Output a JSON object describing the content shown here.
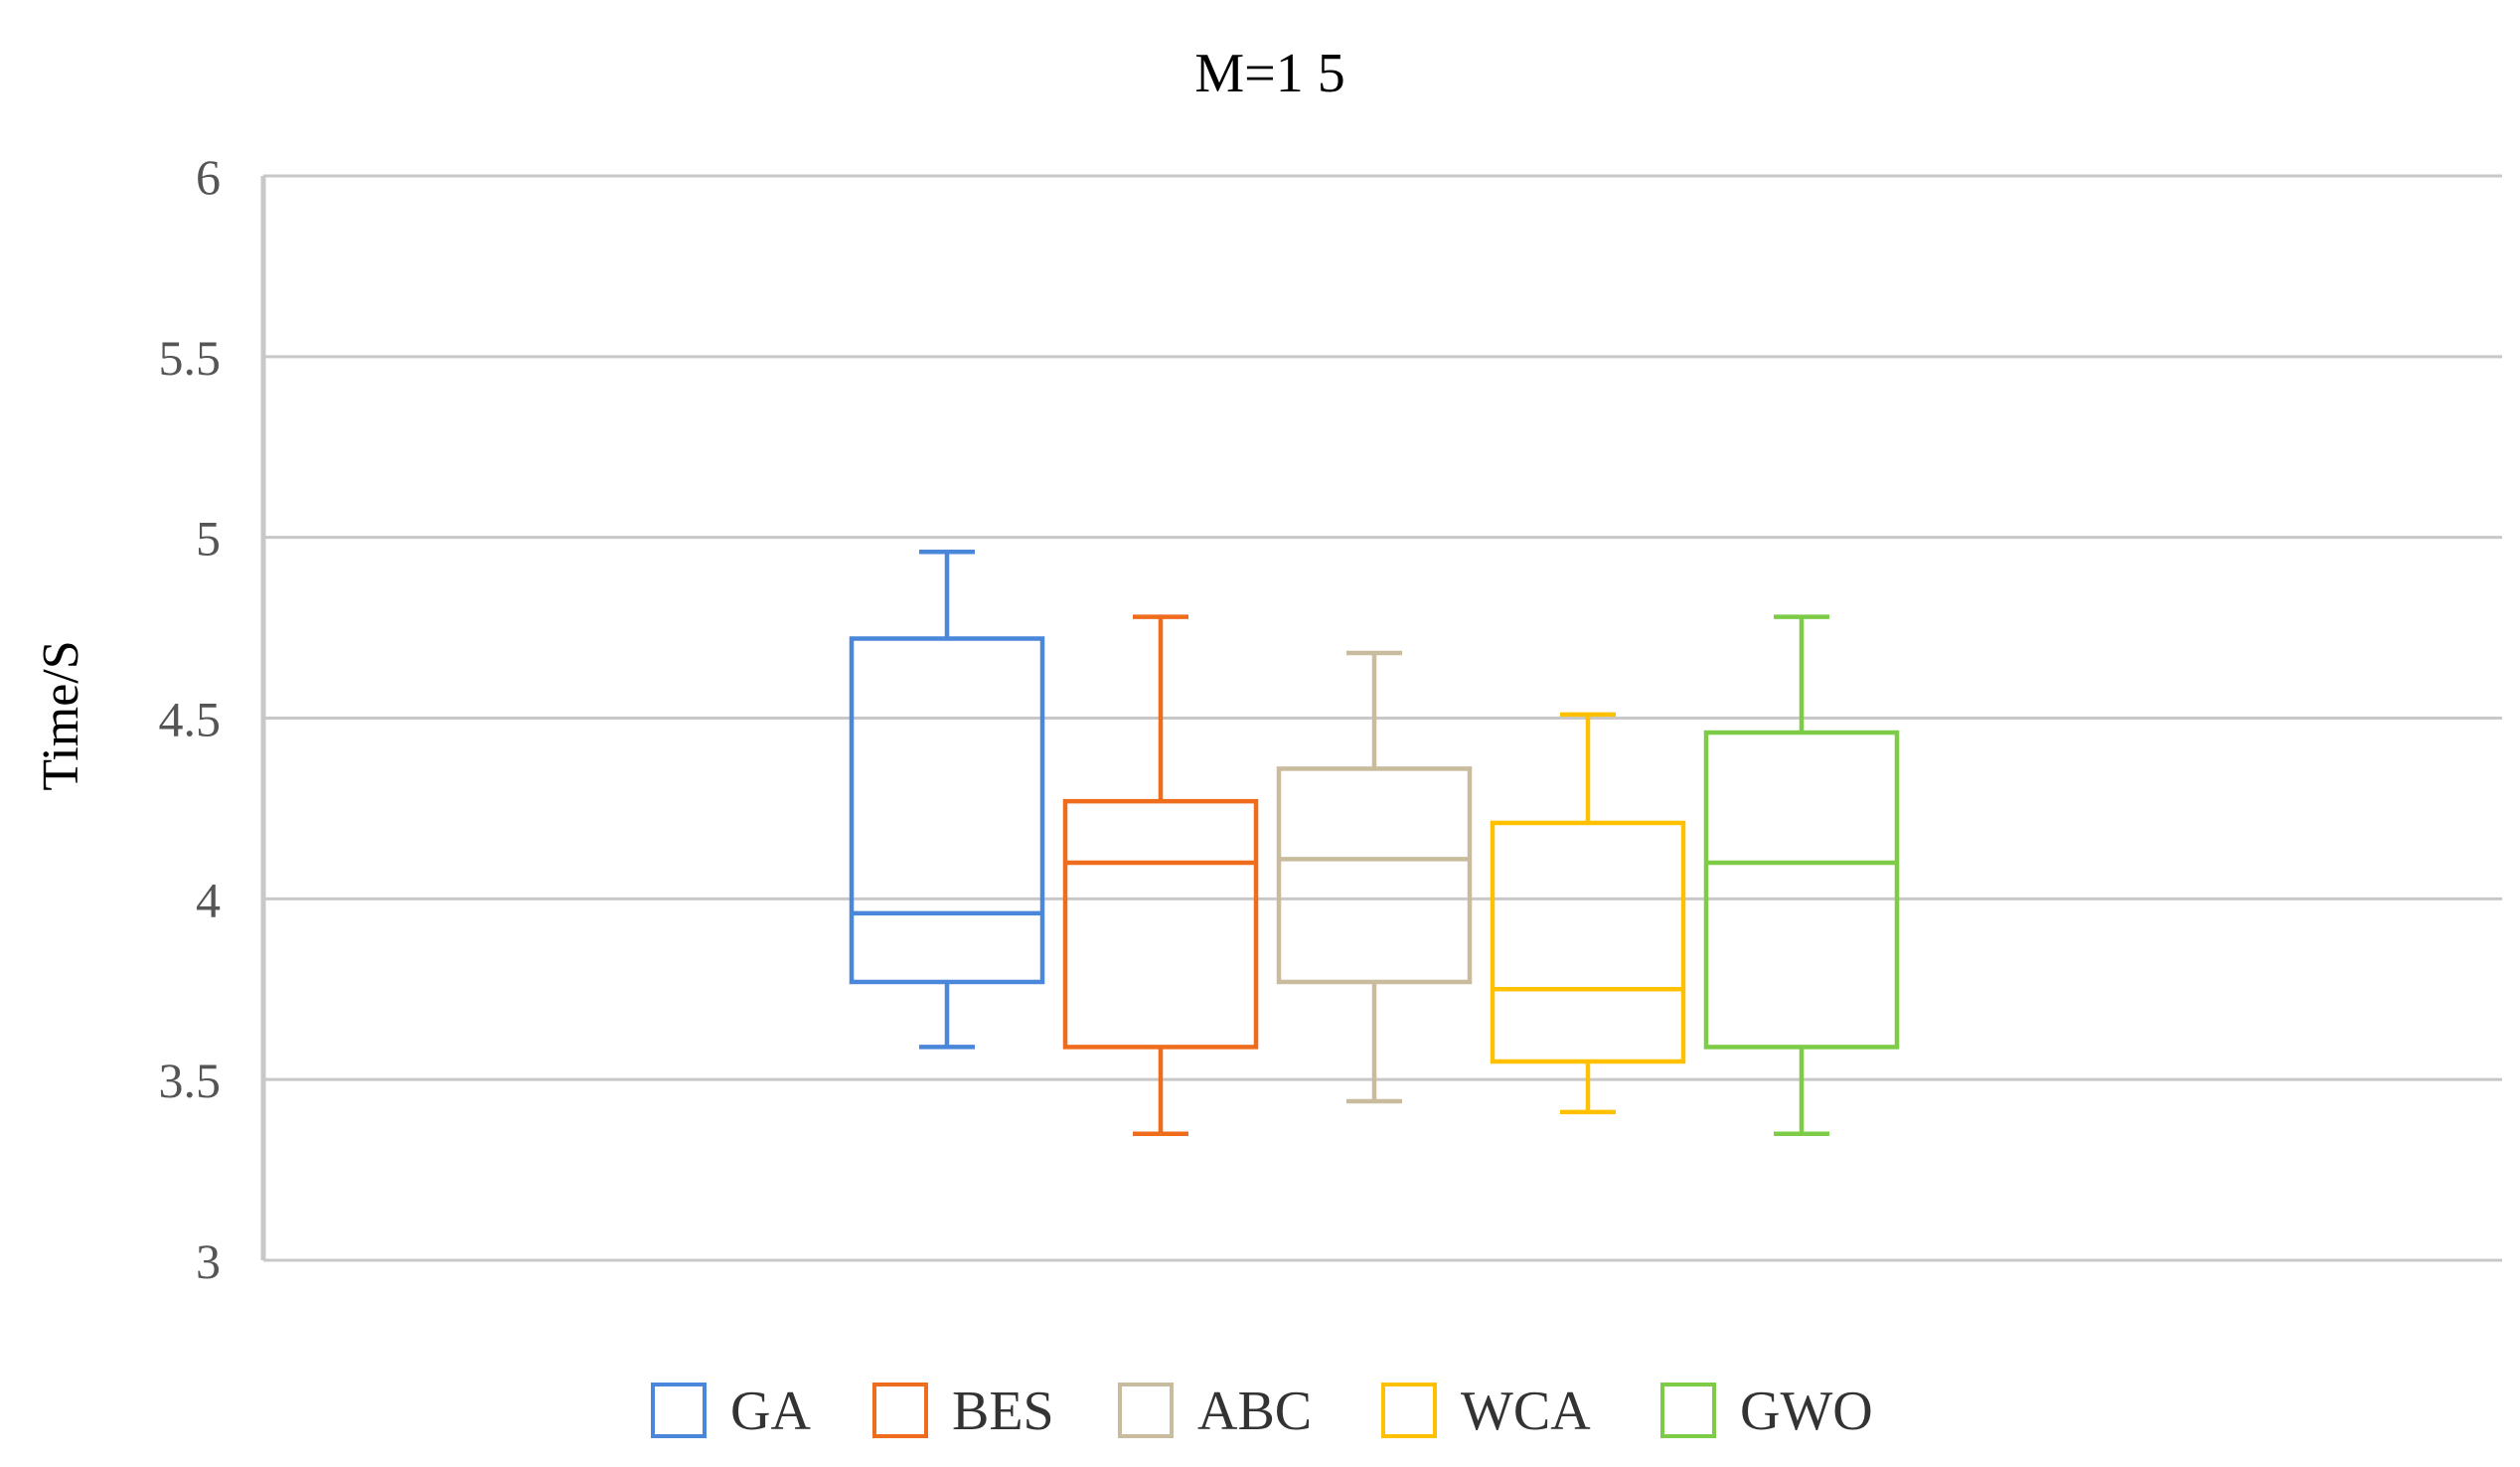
{
  "chart_data": {
    "type": "box",
    "title": "M=1 5",
    "xlabel": "",
    "ylabel": "Time/S",
    "ylim": [
      3,
      6
    ],
    "yticks": [
      3,
      3.5,
      4,
      4.5,
      5,
      5.5,
      6
    ],
    "ytick_labels": [
      "3",
      "3.5",
      "4",
      "4.5",
      "5",
      "5.5",
      "6"
    ],
    "grid": true,
    "legend_position": "bottom",
    "series": [
      {
        "name": "GA",
        "color": "#4a86d9",
        "min": 3.59,
        "q1": 3.77,
        "median": 3.96,
        "q3": 4.72,
        "max": 4.96
      },
      {
        "name": "BES",
        "color": "#ee6c1b",
        "min": 3.35,
        "q1": 3.59,
        "median": 4.1,
        "q3": 4.27,
        "max": 4.78
      },
      {
        "name": "ABC",
        "color": "#c9bc9e",
        "min": 3.44,
        "q1": 3.77,
        "median": 4.11,
        "q3": 4.36,
        "max": 4.68
      },
      {
        "name": "WCA",
        "color": "#ffc000",
        "min": 3.41,
        "q1": 3.55,
        "median": 3.75,
        "q3": 4.21,
        "max": 4.51
      },
      {
        "name": "GWO",
        "color": "#7dcc47",
        "min": 3.35,
        "q1": 3.59,
        "median": 4.1,
        "q3": 4.46,
        "max": 4.78
      }
    ]
  }
}
